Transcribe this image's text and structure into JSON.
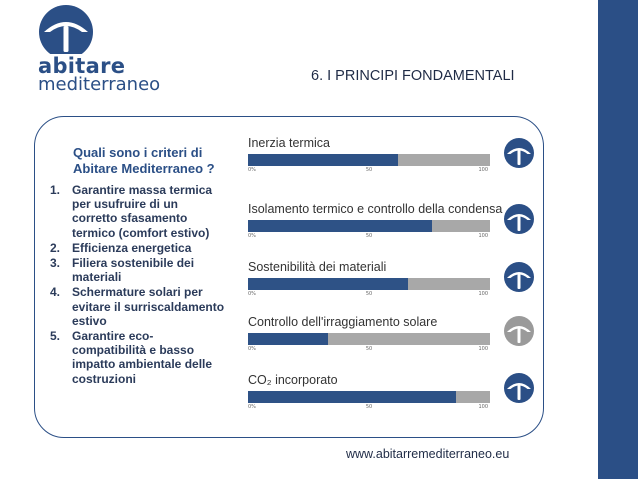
{
  "slide": {
    "title": "6. I PRINCIPI FONDAMENTALI",
    "footer_url": "www.abitarremediterraneo.eu",
    "accent_color": "#2b4f86"
  },
  "logo": {
    "word1": "abitare",
    "word2": "mediterraneo",
    "icon": "arch-umbrella-icon"
  },
  "question": {
    "line1": "Quali sono i criteri di",
    "line2": "Abitare Mediterraneo ?"
  },
  "criteria": [
    {
      "num": "1.",
      "lines": [
        "Garantire massa termica",
        "per usufruire di un",
        "corretto sfasamento",
        "termico (comfort estivo)"
      ]
    },
    {
      "num": "2.",
      "lines": [
        "Efficienza energetica"
      ]
    },
    {
      "num": "3.",
      "lines": [
        "Filiera sostenibile dei",
        "materiali"
      ]
    },
    {
      "num": "4.",
      "lines": [
        "Schermature solari per",
        "evitare il surriscaldamento",
        "estivo"
      ]
    },
    {
      "num": "5.",
      "lines": [
        "Garantire eco-",
        "compatibilità e basso",
        "impatto ambientale delle",
        "costruzioni"
      ]
    }
  ],
  "ticks": [
    "0%",
    "50",
    "100"
  ],
  "bars": [
    {
      "label": "Inerzia termica",
      "value": 62,
      "icon_color": "#2b4f86"
    },
    {
      "label": "Isolamento termico e controllo della condensa",
      "value": 76,
      "icon_color": "#2b4f86"
    },
    {
      "label": "Sostenibilità dei materiali",
      "value": 66,
      "icon_color": "#2b4f86"
    },
    {
      "label": "Controllo dell'irraggiamento solare",
      "value": 33,
      "icon_color": "#9a9a9a"
    },
    {
      "label": "CO₂ incorporato",
      "value": 86,
      "icon_color": "#2b4f86"
    }
  ]
}
